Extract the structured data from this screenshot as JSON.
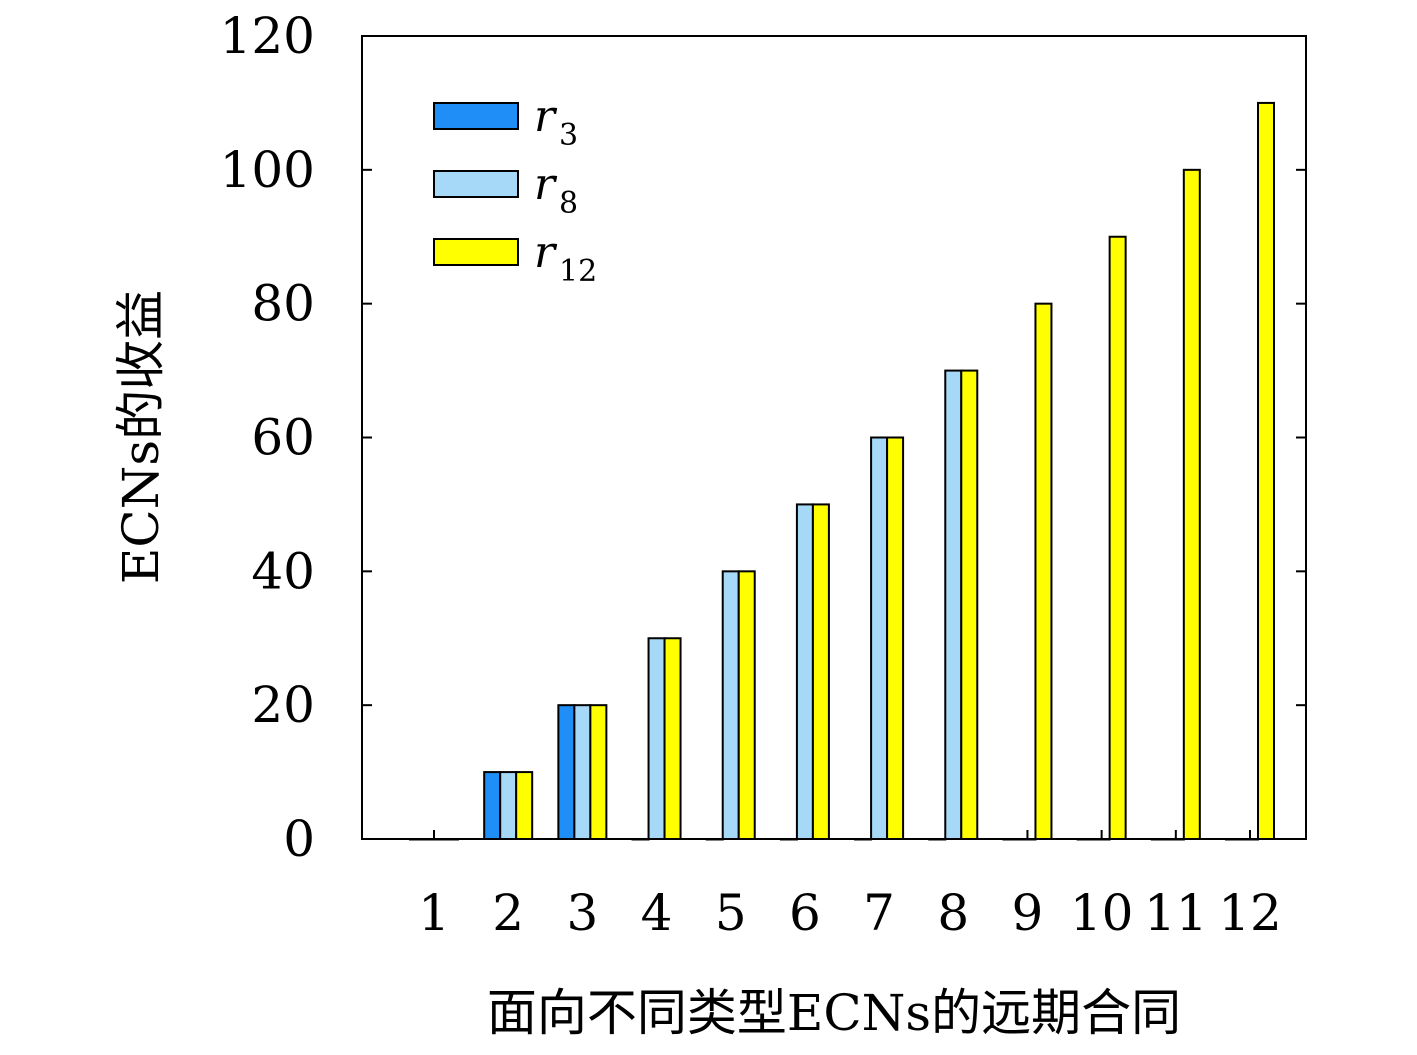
{
  "chart_data": {
    "type": "bar",
    "xlabel": "面向不同类型ECNs的远期合同",
    "ylabel": "ECNs的收益",
    "categories": [
      "1",
      "2",
      "3",
      "4",
      "5",
      "6",
      "7",
      "8",
      "9",
      "10",
      "11",
      "12"
    ],
    "ylim": [
      0,
      120
    ],
    "yticks": [
      "0",
      "20",
      "40",
      "60",
      "80",
      "100",
      "120"
    ],
    "grid": false,
    "legend_position": "top-left",
    "series": [
      {
        "name": "r",
        "subscript": "3",
        "color": "#1f8ff7",
        "values": [
          0,
          10,
          20,
          0,
          0,
          0,
          0,
          0,
          0,
          0,
          0,
          0
        ]
      },
      {
        "name": "r",
        "subscript": "8",
        "color": "#a6d8f8",
        "values": [
          0,
          10,
          20,
          30,
          40,
          50,
          60,
          70,
          0,
          0,
          0,
          0
        ]
      },
      {
        "name": "r",
        "subscript": "12",
        "color": "#ffff00",
        "values": [
          0,
          10,
          20,
          30,
          40,
          50,
          60,
          70,
          80,
          90,
          100,
          110
        ]
      }
    ]
  }
}
